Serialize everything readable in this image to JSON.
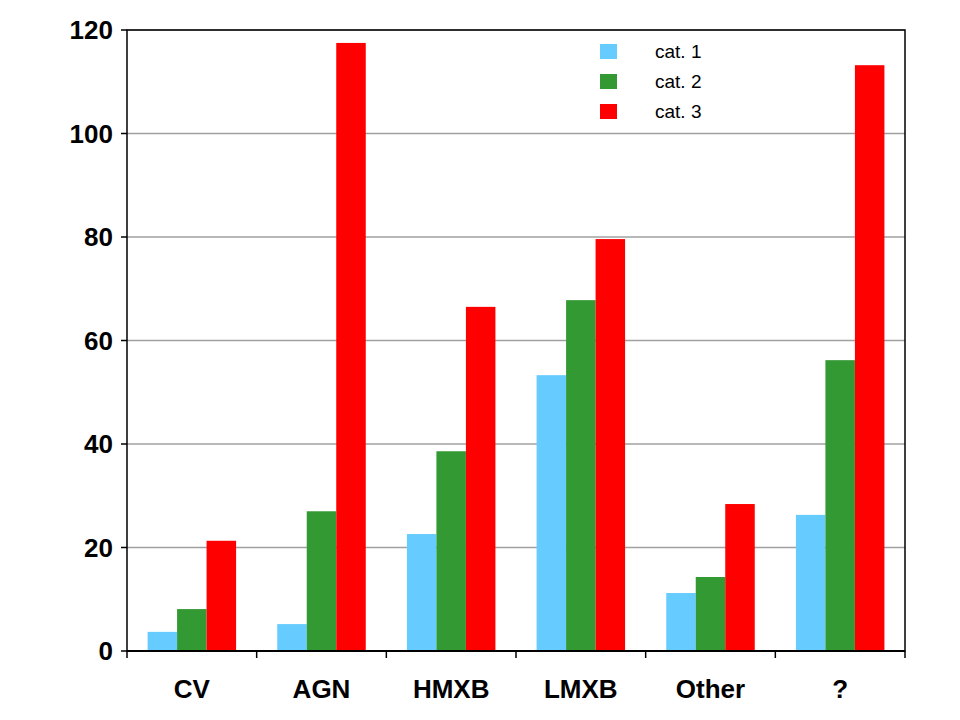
{
  "chart_data": {
    "type": "bar",
    "categories": [
      "CV",
      "AGN",
      "HMXB",
      "LMXB",
      "Other",
      "?"
    ],
    "series": [
      {
        "name": "cat. 1",
        "color": "#66ccff",
        "values": [
          3.7,
          5.2,
          22.6,
          53.3,
          11.2,
          26.3
        ]
      },
      {
        "name": "cat. 2",
        "color": "#339933",
        "values": [
          8.1,
          27,
          38.6,
          67.8,
          14.3,
          56.2
        ]
      },
      {
        "name": "cat. 3",
        "color": "#ff0000",
        "values": [
          21.3,
          117.5,
          66.5,
          79.6,
          28.4,
          113.2
        ]
      }
    ],
    "ylim": [
      0,
      120
    ],
    "yticks": [
      0,
      20,
      40,
      60,
      80,
      100,
      120
    ],
    "grid": true,
    "legend": "top-right"
  }
}
